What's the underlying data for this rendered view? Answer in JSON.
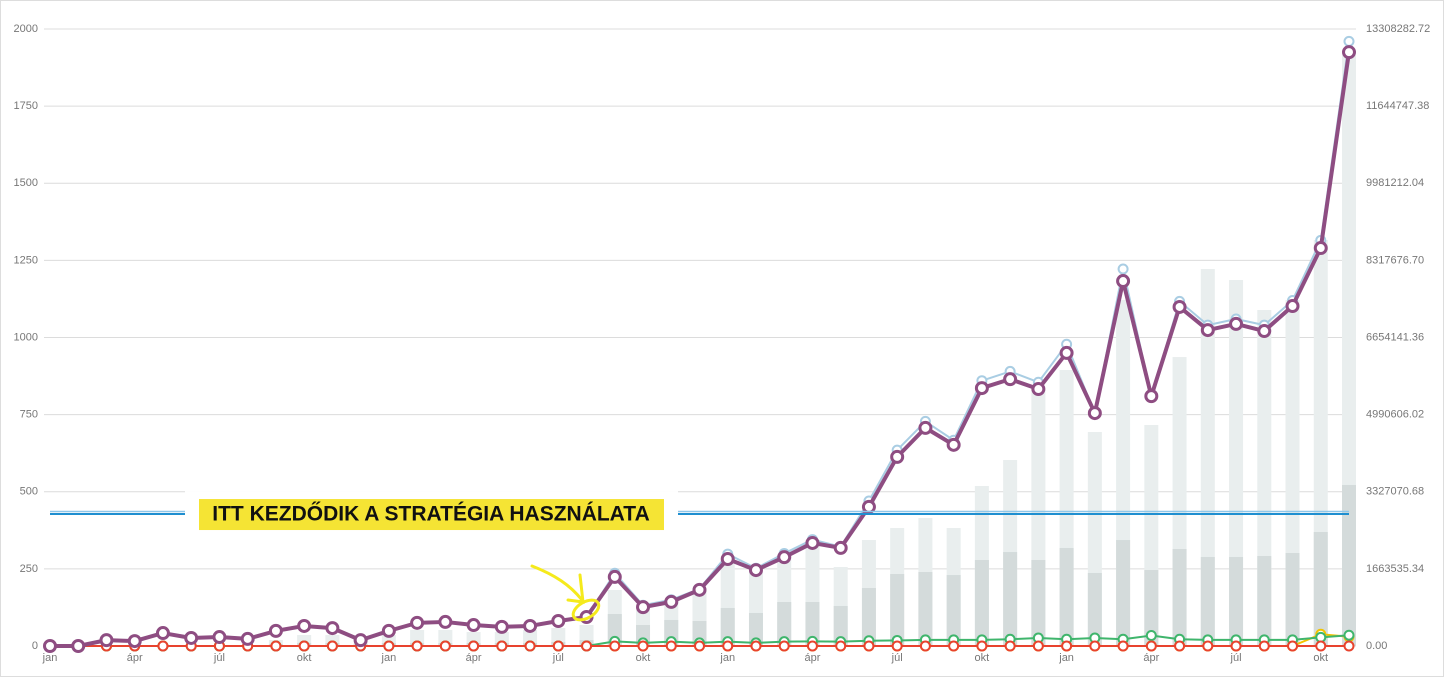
{
  "chart_data": {
    "type": "line",
    "categories": [
      "jan",
      null,
      null,
      "ápr",
      null,
      null,
      "júl",
      null,
      null,
      "okt",
      null,
      null,
      "jan",
      null,
      null,
      "ápr",
      null,
      null,
      "júl",
      null,
      null,
      "okt",
      null,
      null,
      "jan",
      null,
      null,
      "ápr",
      null,
      null,
      "júl",
      null,
      null,
      "okt",
      null,
      null,
      "jan",
      null,
      null,
      "ápr",
      null,
      null,
      "júl",
      null,
      null,
      "okt",
      null
    ],
    "ylim": [
      0,
      2000
    ],
    "yticks": [
      0,
      250,
      500,
      750,
      1000,
      1250,
      1500,
      1750,
      2000
    ],
    "y2lim": [
      0,
      13308282.72
    ],
    "y2ticks": [
      {
        "value": 0,
        "label": "0.00"
      },
      {
        "value": 1663535.34,
        "label": "1663535.34"
      },
      {
        "value": 3327070.68,
        "label": "3327070.68"
      },
      {
        "value": 4990606.02,
        "label": "4990606.02"
      },
      {
        "value": 6654141.36,
        "label": "6654141.36"
      },
      {
        "value": 8317676.7,
        "label": "8317676.70"
      },
      {
        "value": 9981212.04,
        "label": "9981212.04"
      },
      {
        "value": 11644747.38,
        "label": "11644747.38"
      },
      {
        "value": 13308282.72,
        "label": "13308282.72"
      }
    ],
    "grid": true,
    "annotation": {
      "text": "ITT KEZDŐDIK A STRATÉGIA HASZNÁLATA",
      "value": 431
    },
    "series": [
      {
        "type": "bar",
        "axis": "y2",
        "color": "#e9eeee",
        "values": [
          0,
          0,
          0,
          0,
          0,
          0,
          0,
          0,
          129000,
          237000,
          237000,
          129000,
          237000,
          345000,
          345000,
          302000,
          302000,
          345000,
          388000,
          453000,
          1208000,
          776000,
          992000,
          1208000,
          1855000,
          1639000,
          1963000,
          2178000,
          1704000,
          2286000,
          2545000,
          2761000,
          2545000,
          3451000,
          4012000,
          5522000,
          5953000,
          4616000,
          7463000,
          4767000,
          6233000,
          8132000,
          7894000,
          7247000,
          7463000,
          8757000,
          12747000
        ]
      },
      {
        "type": "bar",
        "axis": "y2",
        "color": "#d4dbdb",
        "values": [
          0,
          0,
          0,
          0,
          0,
          0,
          0,
          0,
          43000,
          65000,
          65000,
          43000,
          65000,
          65000,
          65000,
          65000,
          65000,
          65000,
          86000,
          129000,
          690000,
          453000,
          561000,
          539000,
          820000,
          712000,
          949000,
          949000,
          863000,
          1251000,
          1553000,
          1596000,
          1531000,
          1855000,
          2027000,
          1855000,
          2114000,
          1575000,
          2286000,
          1639000,
          2092000,
          1920000,
          1920000,
          1941000,
          2006000,
          2459000,
          3473000
        ]
      },
      {
        "type": "line",
        "color": "#a9cde3",
        "width": 2,
        "values": [
          0,
          0,
          19,
          16,
          42,
          26,
          29,
          23,
          49,
          65,
          58,
          19,
          49,
          75,
          78,
          68,
          62,
          65,
          81,
          94,
          236,
          132,
          150,
          185,
          298,
          252,
          300,
          345,
          322,
          470,
          635,
          728,
          667,
          860,
          890,
          855,
          978,
          755,
          1222,
          810,
          1117,
          1040,
          1060,
          1040,
          1120,
          1315,
          1960
        ]
      },
      {
        "type": "line",
        "color": "#f2c300",
        "width": 2,
        "values": [
          0,
          0,
          0,
          0,
          0,
          0,
          0,
          0,
          0,
          0,
          0,
          0,
          0,
          0,
          0,
          0,
          0,
          0,
          0,
          0,
          0,
          0,
          0,
          0,
          0,
          0,
          0,
          0,
          0,
          0,
          0,
          0,
          0,
          0,
          0,
          0,
          0,
          0,
          0,
          0,
          0,
          0,
          0,
          0,
          0,
          38,
          30
        ]
      },
      {
        "type": "line",
        "color": "#3fb56c",
        "width": 2,
        "values": [
          0,
          0,
          0,
          0,
          0,
          0,
          0,
          0,
          0,
          0,
          0,
          0,
          0,
          0,
          0,
          0,
          0,
          0,
          0,
          0,
          15,
          10,
          14,
          10,
          14,
          10,
          14,
          15,
          14,
          17,
          18,
          20,
          20,
          20,
          22,
          26,
          22,
          26,
          22,
          34,
          22,
          20,
          20,
          20,
          20,
          28,
          35
        ]
      },
      {
        "type": "line",
        "color": "#e8432e",
        "width": 2,
        "values": [
          0,
          0,
          0,
          0,
          0,
          0,
          0,
          0,
          0,
          0,
          0,
          0,
          0,
          0,
          0,
          0,
          0,
          0,
          0,
          0,
          0,
          0,
          0,
          0,
          0,
          0,
          0,
          0,
          0,
          0,
          0,
          0,
          0,
          0,
          0,
          0,
          0,
          0,
          0,
          0,
          0,
          0,
          0,
          0,
          0,
          0,
          0
        ]
      },
      {
        "type": "line",
        "color": "#8e4d82",
        "width": 4,
        "values": [
          0,
          0,
          19,
          16,
          42,
          26,
          29,
          23,
          49,
          65,
          58,
          19,
          49,
          75,
          78,
          68,
          62,
          65,
          81,
          94,
          224,
          126,
          143,
          182,
          282,
          246,
          288,
          334,
          318,
          451,
          613,
          707,
          652,
          836,
          865,
          833,
          950,
          755,
          1183,
          810,
          1099,
          1024,
          1044,
          1021,
          1102,
          1290,
          1925
        ]
      }
    ]
  }
}
